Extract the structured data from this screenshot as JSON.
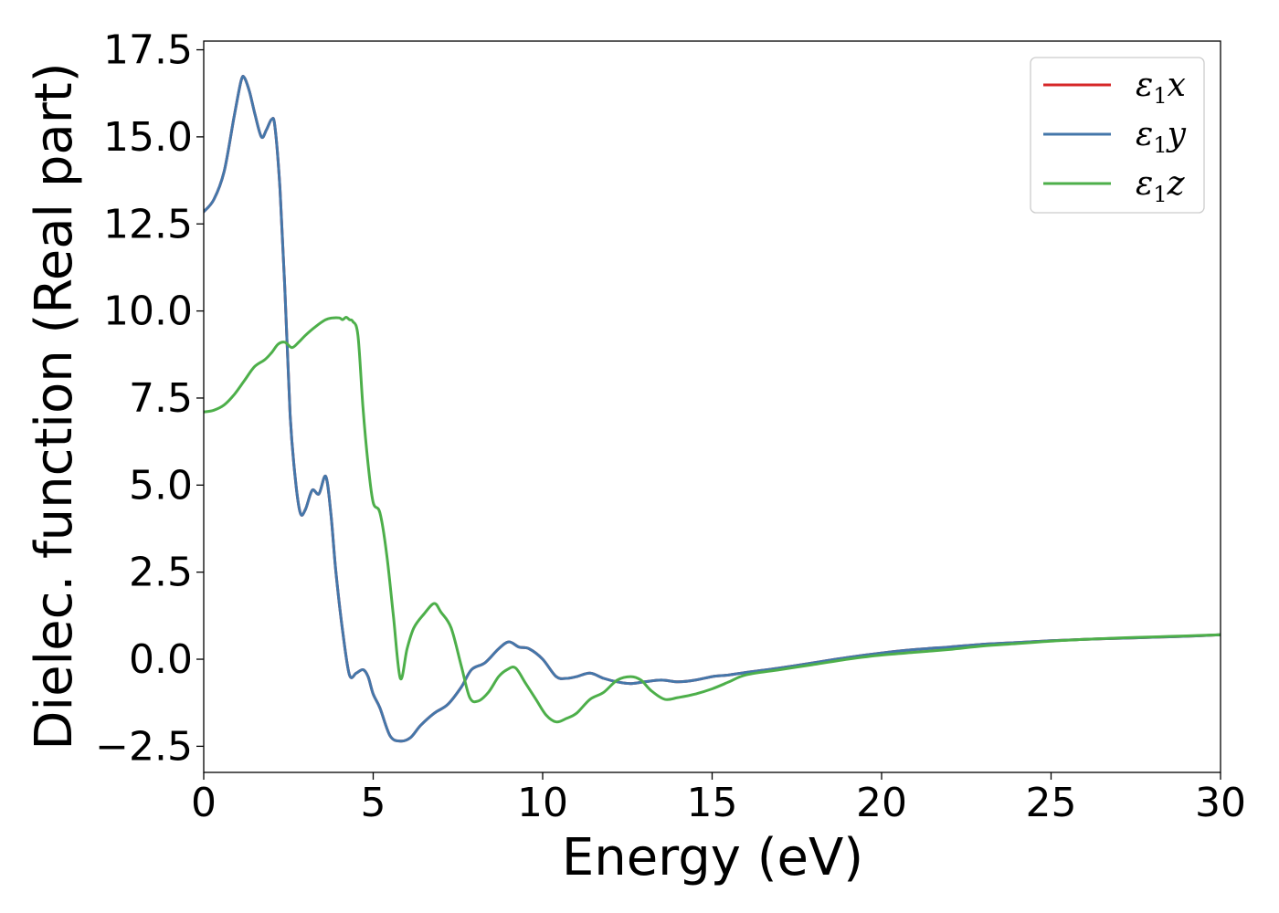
{
  "chart_data": {
    "type": "line",
    "xlabel": "Energy (eV)",
    "ylabel": "Dielec. function (Real part)",
    "xlim": [
      0,
      30
    ],
    "ylim": [
      -3.25,
      17.75
    ],
    "xticks": [
      0,
      5,
      10,
      15,
      20,
      25,
      30
    ],
    "xtick_labels": [
      "0",
      "5",
      "10",
      "15",
      "20",
      "25",
      "30"
    ],
    "yticks": [
      -2.5,
      0.0,
      2.5,
      5.0,
      7.5,
      10.0,
      12.5,
      15.0,
      17.5
    ],
    "ytick_labels": [
      "−2.5",
      "0.0",
      "2.5",
      "5.0",
      "7.5",
      "10.0",
      "12.5",
      "15.0",
      "17.5"
    ],
    "grid": false,
    "legend_position": "top-right",
    "series": [
      {
        "name": "ε1x",
        "color": "#d62728",
        "x": [
          0,
          0.3,
          0.6,
          0.9,
          1.1,
          1.2,
          1.35,
          1.5,
          1.7,
          1.85,
          2.0,
          2.1,
          2.25,
          2.4,
          2.55,
          2.7,
          2.85,
          3.0,
          3.2,
          3.4,
          3.6,
          3.75,
          3.9,
          4.1,
          4.3,
          4.5,
          4.7,
          4.85,
          5.0,
          5.2,
          5.5,
          5.8,
          6.1,
          6.4,
          6.8,
          7.2,
          7.6,
          7.9,
          8.3,
          8.7,
          9.0,
          9.3,
          9.6,
          10.0,
          10.4,
          10.7,
          11.0,
          11.4,
          11.8,
          12.2,
          12.6,
          13.0,
          13.5,
          14.0,
          14.5,
          15.0,
          15.5,
          16.0,
          17.0,
          18.0,
          19.0,
          20.0,
          21.0,
          22.0,
          23.0,
          24.0,
          25.0,
          26.0,
          27.0,
          28.0,
          29.0,
          30.0
        ],
        "y": [
          12.85,
          13.2,
          14.0,
          15.6,
          16.6,
          16.7,
          16.3,
          15.7,
          15.0,
          15.2,
          15.5,
          15.3,
          13.5,
          10.5,
          7.0,
          5.2,
          4.2,
          4.3,
          4.85,
          4.75,
          5.25,
          4.2,
          2.5,
          0.8,
          -0.45,
          -0.4,
          -0.3,
          -0.5,
          -1.0,
          -1.4,
          -2.2,
          -2.35,
          -2.25,
          -1.9,
          -1.55,
          -1.3,
          -0.8,
          -0.3,
          -0.1,
          0.3,
          0.5,
          0.35,
          0.3,
          0.0,
          -0.5,
          -0.55,
          -0.5,
          -0.4,
          -0.55,
          -0.65,
          -0.7,
          -0.65,
          -0.6,
          -0.65,
          -0.6,
          -0.5,
          -0.45,
          -0.38,
          -0.25,
          -0.1,
          0.05,
          0.18,
          0.28,
          0.35,
          0.43,
          0.48,
          0.53,
          0.57,
          0.6,
          0.63,
          0.66,
          0.7
        ]
      },
      {
        "name": "ε1y",
        "color": "#4477aa",
        "x": [
          0,
          0.3,
          0.6,
          0.9,
          1.1,
          1.2,
          1.35,
          1.5,
          1.7,
          1.85,
          2.0,
          2.1,
          2.25,
          2.4,
          2.55,
          2.7,
          2.85,
          3.0,
          3.2,
          3.4,
          3.6,
          3.75,
          3.9,
          4.1,
          4.3,
          4.5,
          4.7,
          4.85,
          5.0,
          5.2,
          5.5,
          5.8,
          6.1,
          6.4,
          6.8,
          7.2,
          7.6,
          7.9,
          8.3,
          8.7,
          9.0,
          9.3,
          9.6,
          10.0,
          10.4,
          10.7,
          11.0,
          11.4,
          11.8,
          12.2,
          12.6,
          13.0,
          13.5,
          14.0,
          14.5,
          15.0,
          15.5,
          16.0,
          17.0,
          18.0,
          19.0,
          20.0,
          21.0,
          22.0,
          23.0,
          24.0,
          25.0,
          26.0,
          27.0,
          28.0,
          29.0,
          30.0
        ],
        "y": [
          12.85,
          13.2,
          14.0,
          15.6,
          16.6,
          16.7,
          16.3,
          15.7,
          15.0,
          15.2,
          15.5,
          15.3,
          13.5,
          10.5,
          7.0,
          5.2,
          4.2,
          4.3,
          4.85,
          4.75,
          5.25,
          4.2,
          2.5,
          0.8,
          -0.45,
          -0.4,
          -0.3,
          -0.5,
          -1.0,
          -1.4,
          -2.2,
          -2.35,
          -2.25,
          -1.9,
          -1.55,
          -1.3,
          -0.8,
          -0.3,
          -0.1,
          0.3,
          0.5,
          0.35,
          0.3,
          0.0,
          -0.5,
          -0.55,
          -0.5,
          -0.4,
          -0.55,
          -0.65,
          -0.7,
          -0.65,
          -0.6,
          -0.65,
          -0.6,
          -0.5,
          -0.45,
          -0.38,
          -0.25,
          -0.1,
          0.05,
          0.18,
          0.28,
          0.35,
          0.43,
          0.48,
          0.53,
          0.57,
          0.6,
          0.63,
          0.66,
          0.7
        ]
      },
      {
        "name": "ε1z",
        "color": "#4daf4a",
        "x": [
          0,
          0.3,
          0.6,
          0.9,
          1.2,
          1.5,
          1.8,
          2.0,
          2.2,
          2.4,
          2.6,
          2.8,
          3.0,
          3.3,
          3.6,
          3.8,
          4.0,
          4.1,
          4.2,
          4.3,
          4.4,
          4.55,
          4.7,
          4.85,
          5.0,
          5.2,
          5.4,
          5.6,
          5.8,
          6.0,
          6.2,
          6.5,
          6.8,
          7.0,
          7.3,
          7.6,
          7.85,
          8.1,
          8.4,
          8.7,
          8.95,
          9.2,
          9.5,
          9.8,
          10.1,
          10.4,
          10.7,
          11.0,
          11.4,
          11.8,
          12.2,
          12.6,
          12.9,
          13.2,
          13.6,
          14.0,
          14.5,
          15.0,
          15.5,
          16.0,
          17.0,
          18.0,
          19.0,
          20.0,
          21.0,
          22.0,
          23.0,
          24.0,
          25.0,
          26.0,
          27.0,
          28.0,
          29.0,
          30.0
        ],
        "y": [
          7.1,
          7.15,
          7.3,
          7.6,
          8.0,
          8.4,
          8.6,
          8.8,
          9.05,
          9.1,
          8.95,
          9.1,
          9.3,
          9.55,
          9.75,
          9.8,
          9.8,
          9.75,
          9.82,
          9.75,
          9.7,
          9.3,
          7.2,
          5.6,
          4.5,
          4.2,
          3.0,
          1.2,
          -0.55,
          0.3,
          0.9,
          1.3,
          1.6,
          1.35,
          0.9,
          -0.2,
          -1.1,
          -1.2,
          -0.95,
          -0.5,
          -0.3,
          -0.25,
          -0.7,
          -1.15,
          -1.6,
          -1.8,
          -1.7,
          -1.55,
          -1.15,
          -0.95,
          -0.6,
          -0.5,
          -0.6,
          -0.9,
          -1.15,
          -1.1,
          -1.0,
          -0.85,
          -0.65,
          -0.45,
          -0.3,
          -0.15,
          0.0,
          0.12,
          0.2,
          0.28,
          0.38,
          0.45,
          0.52,
          0.57,
          0.61,
          0.64,
          0.67,
          0.7
        ]
      }
    ]
  }
}
